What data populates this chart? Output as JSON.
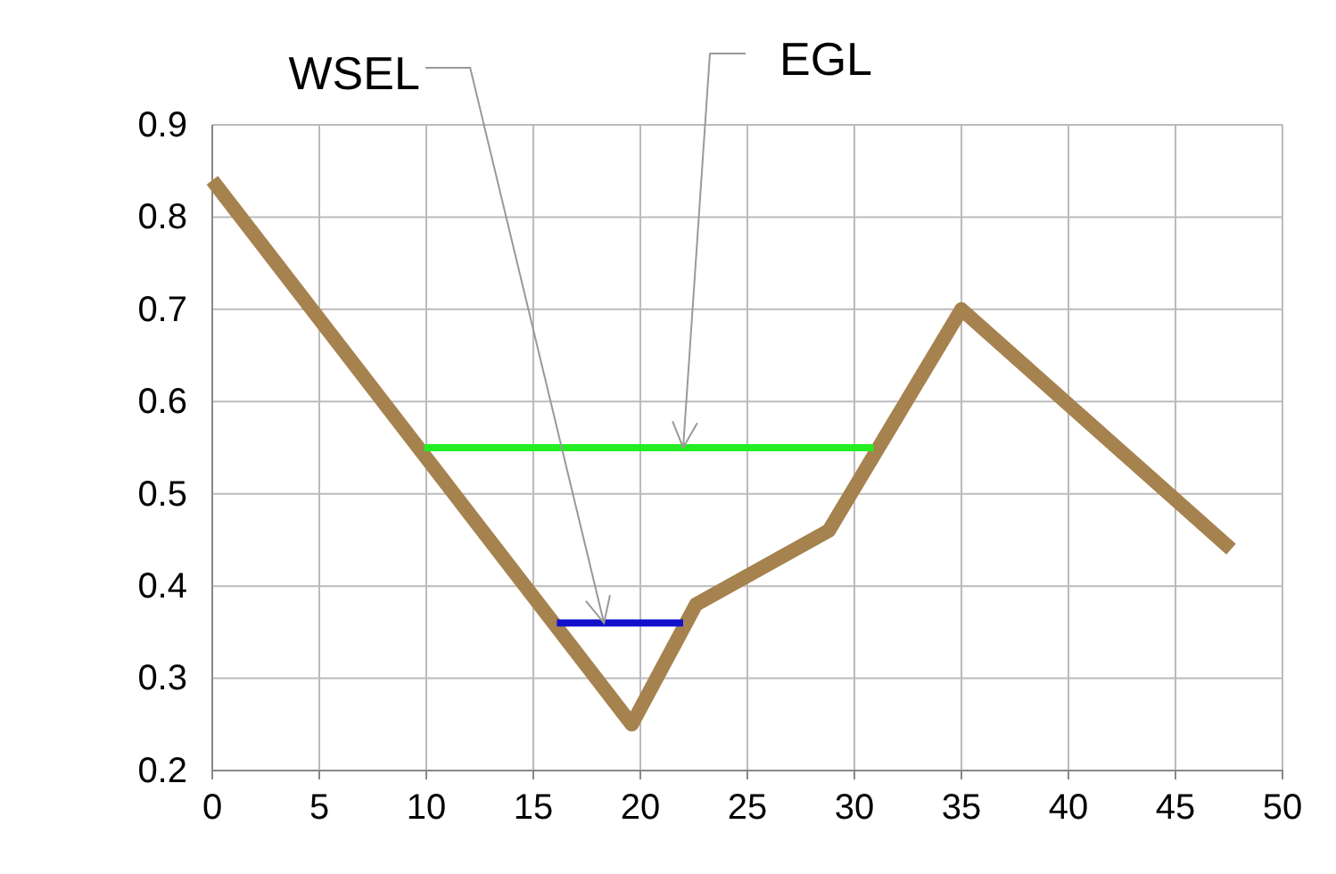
{
  "chart_data": {
    "type": "line",
    "xlim": [
      0,
      50
    ],
    "xticks": [
      0,
      5,
      10,
      15,
      20,
      25,
      30,
      35,
      40,
      45,
      50
    ],
    "ylim": [
      0.2,
      0.9
    ],
    "yticks": [
      0.2,
      0.3,
      0.4,
      0.5,
      0.6,
      0.7,
      0.8,
      0.9
    ],
    "grid": true,
    "marker": "none",
    "line_style": "solid",
    "series": [
      {
        "color": "#a6824f",
        "x": [
          0,
          19.6,
          22.6,
          28.8,
          35,
          47.6
        ],
        "values": [
          0.84,
          0.25,
          0.38,
          0.46,
          0.7,
          0.44
        ]
      },
      {
        "color": "#22ee22",
        "x": [
          9.9,
          30.9
        ],
        "values": [
          0.55,
          0.55
        ]
      },
      {
        "color": "#1010cc",
        "x": [
          16.1,
          22
        ],
        "values": [
          0.36,
          0.36
        ]
      }
    ],
    "annotations": [
      {
        "text": "WSEL",
        "x": 18.3,
        "y": 0.36
      },
      {
        "text": "EGL",
        "x": 22,
        "y": 0.55
      }
    ]
  }
}
